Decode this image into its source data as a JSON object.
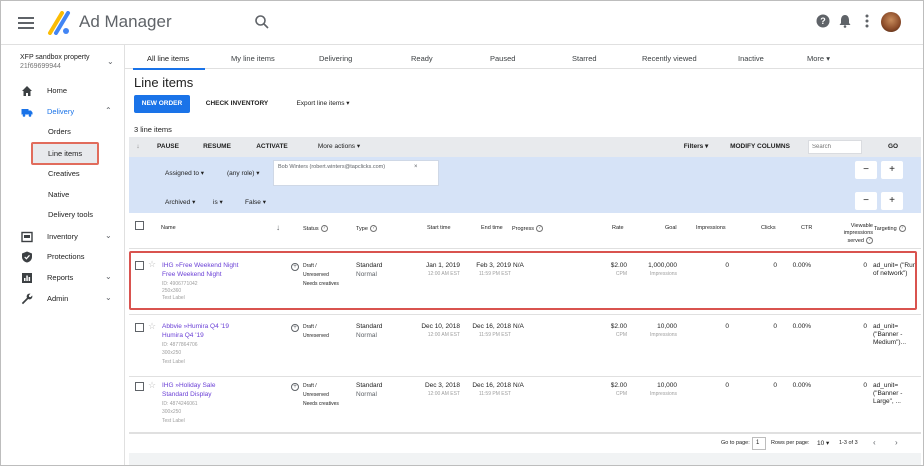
{
  "app": {
    "name": "Ad Manager"
  },
  "network": {
    "name": "XFP sandbox property",
    "id": "21f69699944"
  },
  "sidebar": {
    "items": [
      {
        "label": "Home",
        "icon": "home-icon"
      },
      {
        "label": "Delivery",
        "icon": "truck-icon"
      },
      {
        "label": "Inventory",
        "icon": "inventory-icon"
      },
      {
        "label": "Protections",
        "icon": "shield-icon"
      },
      {
        "label": "Reports",
        "icon": "reports-icon"
      },
      {
        "label": "Admin",
        "icon": "wrench-icon"
      }
    ],
    "delivery_sub": [
      "Orders",
      "Line items",
      "Creatives",
      "Native",
      "Delivery tools"
    ]
  },
  "tabs": [
    "All line items",
    "My line items",
    "Delivering",
    "Ready",
    "Paused",
    "Starred",
    "Recently viewed",
    "Inactive",
    "More"
  ],
  "page": {
    "title": "Line items",
    "new_order": "NEW ORDER",
    "check_inventory": "CHECK INVENTORY",
    "export": "Export line items",
    "count": "3 line items"
  },
  "toolbar": {
    "pause": "PAUSE",
    "resume": "RESUME",
    "activate": "ACTIVATE",
    "more_actions": "More actions",
    "filters": "Filters",
    "modify_columns": "MODIFY COLUMNS",
    "search_placeholder": "Search",
    "go": "GO"
  },
  "filters": {
    "assigned_to": "Assigned to",
    "any_role": "(any role)",
    "chip": "Bob Winters (robert.winters@tapclicks.com)",
    "archived": "Archived",
    "is": "is",
    "false": "False",
    "minus": "−",
    "plus": "+"
  },
  "columns": {
    "name": "Name",
    "status": "Status",
    "type": "Type",
    "start": "Start time",
    "end": "End time",
    "progress": "Progress",
    "rate": "Rate",
    "goal": "Goal",
    "impressions": "Impressions",
    "clicks": "Clicks",
    "ctr": "CTR",
    "viewable": "Viewable impressions served",
    "targeting": "Targeting"
  },
  "rows": [
    {
      "order": "IHG »Free Weekend Night",
      "name": "Free Weekend Night",
      "id": "ID: 4906771042",
      "size": "250x360",
      "label": "Test Label",
      "status1": "Draft /",
      "status2": "Unreserved",
      "status3": "Needs creatives",
      "type1": "Standard",
      "type2": "Normal",
      "start": "Jan 1, 2019",
      "start_t": "12:00 AM EST",
      "end": "Feb 3, 2019",
      "end_t": "11:59 PM EST",
      "progress": "N/A",
      "rate": "$2.00",
      "rate_u": "CPM",
      "goal": "1,000,000",
      "goal_u": "Impressions",
      "impr": "0",
      "clicks": "0",
      "ctr": "0.00%",
      "viewable": "0",
      "targeting": "ad_unit= (\"Run of network\")"
    },
    {
      "order": "Abbvie »Humira Q4 '19",
      "name": "Humira Q4 '19",
      "id": "ID: 4877864706",
      "size": "300x250",
      "label": "Test Label",
      "status1": "Draft /",
      "status2": "Unreserved",
      "status3": "",
      "type1": "Standard",
      "type2": "Normal",
      "start": "Dec 10, 2018",
      "start_t": "12:00 AM EST",
      "end": "Dec 16, 2018",
      "end_t": "11:59 PM EST",
      "progress": "N/A",
      "rate": "$2.00",
      "rate_u": "CPM",
      "goal": "10,000",
      "goal_u": "Impressions",
      "impr": "0",
      "clicks": "0",
      "ctr": "0.00%",
      "viewable": "0",
      "targeting": "ad_unit= (\"Banner - Medium\")..."
    },
    {
      "order": "IHG »Holiday Sale",
      "name": "Standard Display",
      "id": "ID: 4874246061",
      "size": "300x250",
      "label": "Test Label",
      "status1": "Draft /",
      "status2": "Unreserved",
      "status3": "Needs creatives",
      "type1": "Standard",
      "type2": "Normal",
      "start": "Dec 3, 2018",
      "start_t": "12:00 AM EST",
      "end": "Dec 16, 2018",
      "end_t": "11:59 PM EST",
      "progress": "N/A",
      "rate": "$2.00",
      "rate_u": "CPM",
      "goal": "10,000",
      "goal_u": "Impressions",
      "impr": "0",
      "clicks": "0",
      "ctr": "0.00%",
      "viewable": "0",
      "targeting": "ad_unit= (\"Banner - Large\", ..."
    }
  ],
  "footer": {
    "goto": "Go to page:",
    "page": "1",
    "rows": "Rows per page:",
    "rows_val": "10",
    "range": "1-3 of 3"
  }
}
